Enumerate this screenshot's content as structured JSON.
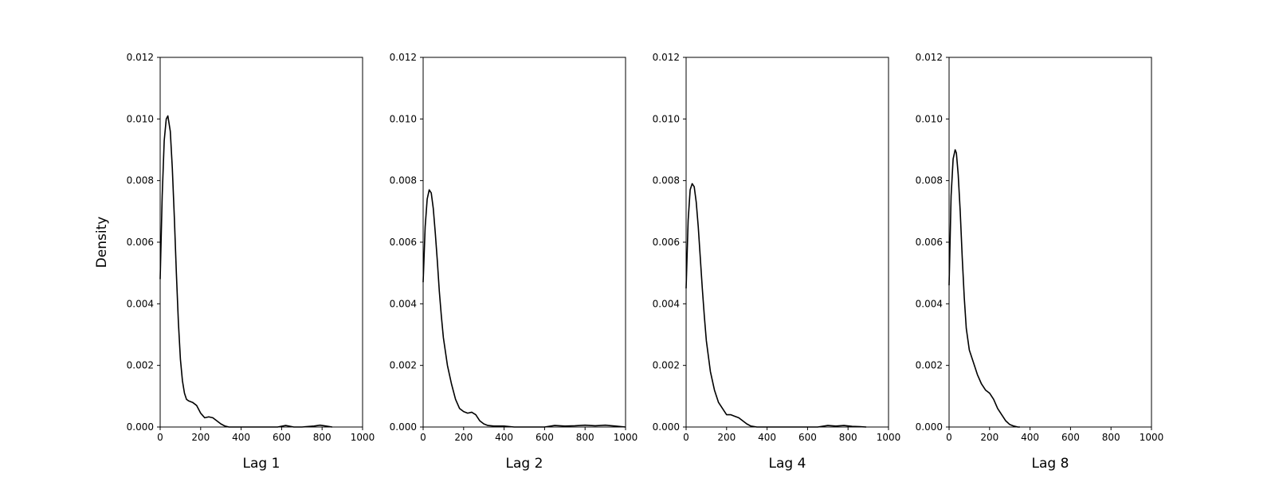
{
  "chart_data": [
    {
      "type": "line",
      "xlabel": "Lag 1",
      "ylabel": "Density",
      "xlim": [
        0,
        1000
      ],
      "ylim": [
        0,
        0.012
      ],
      "xticks": [
        "0",
        "200",
        "400",
        "600",
        "800",
        "1000"
      ],
      "yticks": [
        "0.000",
        "0.002",
        "0.004",
        "0.006",
        "0.008",
        "0.010",
        "0.012"
      ],
      "grid": false,
      "series": [
        {
          "x": [
            0,
            10,
            20,
            30,
            38,
            50,
            60,
            70,
            80,
            90,
            100,
            110,
            120,
            130,
            140,
            160,
            180,
            200,
            220,
            240,
            260,
            280,
            300,
            320,
            340,
            400,
            500,
            580,
            620,
            660,
            700,
            760,
            790,
            820,
            850
          ],
          "y": [
            0.0048,
            0.0075,
            0.0093,
            0.01,
            0.0101,
            0.0096,
            0.0084,
            0.0068,
            0.005,
            0.0034,
            0.0022,
            0.0015,
            0.0011,
            0.0009,
            0.00085,
            0.0008,
            0.0007,
            0.00045,
            0.0003,
            0.00033,
            0.0003,
            0.0002,
            0.0001,
            3e-05,
            0.0,
            0.0,
            0.0,
            0.0,
            5e-05,
            0.0,
            0.0,
            3e-05,
            6e-05,
            3e-05,
            0.0
          ]
        }
      ]
    },
    {
      "type": "line",
      "xlabel": "Lag 2",
      "ylabel": "",
      "xlim": [
        0,
        1000
      ],
      "ylim": [
        0,
        0.012
      ],
      "xticks": [
        "0",
        "200",
        "400",
        "600",
        "800",
        "1000"
      ],
      "yticks": [
        "0.000",
        "0.002",
        "0.004",
        "0.006",
        "0.008",
        "0.010",
        "0.012"
      ],
      "grid": false,
      "series": [
        {
          "x": [
            0,
            10,
            20,
            30,
            40,
            50,
            60,
            70,
            80,
            90,
            100,
            120,
            140,
            160,
            180,
            200,
            220,
            240,
            260,
            280,
            300,
            320,
            350,
            400,
            450,
            500,
            560,
            600,
            650,
            700,
            750,
            800,
            850,
            900,
            950,
            1000
          ],
          "y": [
            0.0047,
            0.0065,
            0.0074,
            0.0077,
            0.0076,
            0.0071,
            0.0063,
            0.0054,
            0.0044,
            0.0036,
            0.0029,
            0.002,
            0.0014,
            0.0009,
            0.0006,
            0.0005,
            0.00045,
            0.00048,
            0.0004,
            0.0002,
            0.0001,
            5e-05,
            3e-05,
            3e-05,
            0.0,
            0.0,
            0.0,
            0.0,
            5e-05,
            3e-05,
            4e-05,
            6e-05,
            4e-05,
            6e-05,
            3e-05,
            0.0
          ]
        }
      ]
    },
    {
      "type": "line",
      "xlabel": "Lag 4",
      "ylabel": "",
      "xlim": [
        0,
        1000
      ],
      "ylim": [
        0,
        0.012
      ],
      "xticks": [
        "0",
        "200",
        "400",
        "600",
        "800",
        "1000"
      ],
      "yticks": [
        "0.000",
        "0.002",
        "0.004",
        "0.006",
        "0.008",
        "0.010",
        "0.012"
      ],
      "grid": false,
      "series": [
        {
          "x": [
            0,
            10,
            20,
            30,
            40,
            50,
            60,
            70,
            80,
            90,
            100,
            120,
            140,
            160,
            180,
            200,
            220,
            240,
            260,
            280,
            300,
            320,
            350,
            400,
            500,
            600,
            650,
            700,
            740,
            780,
            820,
            860,
            890
          ],
          "y": [
            0.0045,
            0.0067,
            0.0077,
            0.0079,
            0.0078,
            0.0073,
            0.0065,
            0.0055,
            0.0045,
            0.0036,
            0.0028,
            0.0018,
            0.0012,
            0.0008,
            0.0006,
            0.0004,
            0.0004,
            0.00035,
            0.0003,
            0.0002,
            0.0001,
            3e-05,
            0.0,
            0.0,
            0.0,
            0.0,
            0.0,
            5e-05,
            3e-05,
            5e-05,
            2e-05,
            1e-05,
            0.0
          ]
        }
      ]
    },
    {
      "type": "line",
      "xlabel": "Lag 8",
      "ylabel": "",
      "xlim": [
        0,
        1000
      ],
      "ylim": [
        0,
        0.012
      ],
      "xticks": [
        "0",
        "200",
        "400",
        "600",
        "800",
        "1000"
      ],
      "yticks": [
        "0.000",
        "0.002",
        "0.004",
        "0.006",
        "0.008",
        "0.010",
        "0.012"
      ],
      "grid": false,
      "series": [
        {
          "x": [
            0,
            10,
            20,
            30,
            36,
            45,
            55,
            65,
            75,
            85,
            100,
            120,
            140,
            160,
            180,
            200,
            220,
            240,
            260,
            280,
            300,
            320,
            340,
            350
          ],
          "y": [
            0.0046,
            0.0075,
            0.0087,
            0.009,
            0.0089,
            0.0082,
            0.007,
            0.0055,
            0.0042,
            0.0032,
            0.0025,
            0.0021,
            0.0017,
            0.0014,
            0.0012,
            0.0011,
            0.0009,
            0.0006,
            0.0004,
            0.0002,
            8e-05,
            3e-05,
            0.0,
            0.0
          ]
        }
      ]
    }
  ]
}
